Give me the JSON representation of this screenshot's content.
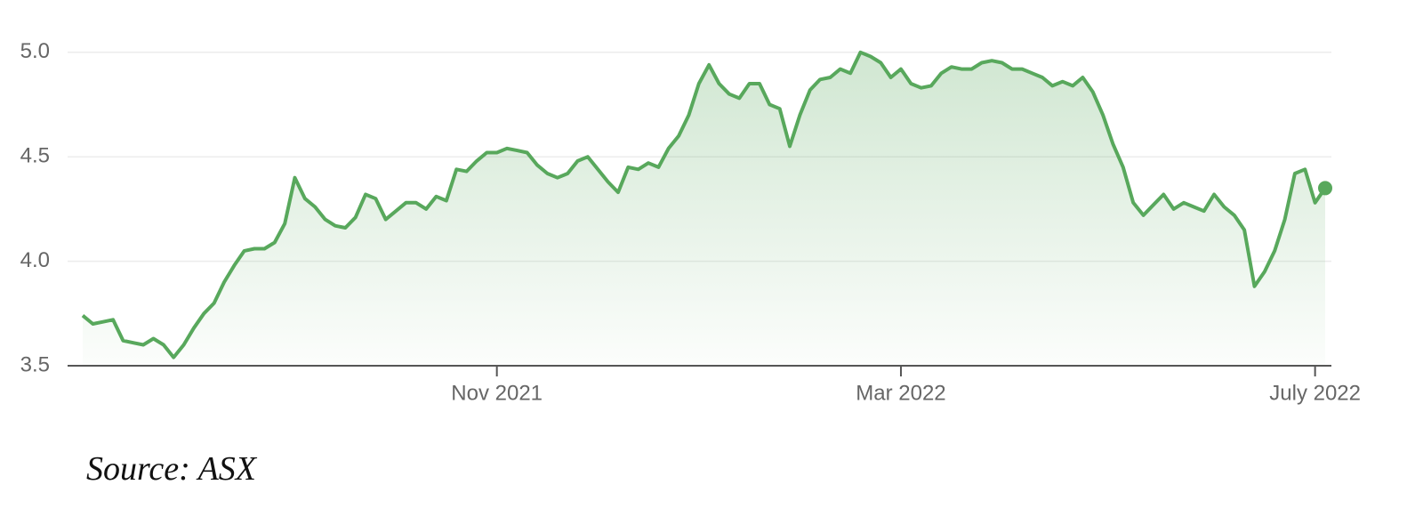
{
  "chart_data": {
    "type": "line",
    "color": "#58a85c",
    "categories": [
      null,
      null,
      null,
      null,
      null,
      null,
      null,
      null,
      null,
      null,
      null,
      null,
      null,
      null,
      null,
      null,
      null,
      null,
      null,
      null,
      null,
      null,
      null,
      null,
      null,
      null,
      null,
      null,
      null,
      null,
      null,
      null,
      null,
      null,
      null,
      null,
      null,
      null,
      null,
      null,
      null,
      "Nov 2021",
      null,
      null,
      null,
      null,
      null,
      null,
      null,
      null,
      null,
      null,
      null,
      null,
      null,
      null,
      null,
      null,
      null,
      null,
      null,
      null,
      null,
      null,
      null,
      null,
      null,
      null,
      null,
      null,
      null,
      null,
      null,
      null,
      null,
      null,
      null,
      null,
      null,
      null,
      null,
      "Mar 2022",
      null,
      null,
      null,
      null,
      null,
      null,
      null,
      null,
      null,
      null,
      null,
      null,
      null,
      null,
      null,
      null,
      null,
      null,
      null,
      null,
      null,
      null,
      null,
      null,
      null,
      null,
      null,
      null,
      null,
      null,
      null,
      null,
      null,
      null,
      null,
      null,
      null,
      null,
      null,
      null,
      "July 2022",
      null
    ],
    "values": [
      3.74,
      3.7,
      3.71,
      3.72,
      3.62,
      3.61,
      3.6,
      3.63,
      3.6,
      3.54,
      3.6,
      3.68,
      3.75,
      3.8,
      3.9,
      3.98,
      4.05,
      4.06,
      4.06,
      4.09,
      4.18,
      4.4,
      4.3,
      4.26,
      4.2,
      4.17,
      4.16,
      4.21,
      4.32,
      4.3,
      4.2,
      4.24,
      4.28,
      4.28,
      4.25,
      4.31,
      4.29,
      4.44,
      4.43,
      4.48,
      4.52,
      4.52,
      4.54,
      4.53,
      4.52,
      4.46,
      4.42,
      4.4,
      4.42,
      4.48,
      4.5,
      4.44,
      4.38,
      4.33,
      4.45,
      4.44,
      4.47,
      4.45,
      4.54,
      4.6,
      4.7,
      4.85,
      4.94,
      4.85,
      4.8,
      4.78,
      4.85,
      4.85,
      4.75,
      4.73,
      4.55,
      4.7,
      4.82,
      4.87,
      4.88,
      4.92,
      4.9,
      5.0,
      4.98,
      4.95,
      4.88,
      4.92,
      4.85,
      4.83,
      4.84,
      4.9,
      4.93,
      4.92,
      4.92,
      4.95,
      4.96,
      4.95,
      4.92,
      4.92,
      4.9,
      4.88,
      4.84,
      4.86,
      4.84,
      4.88,
      4.81,
      4.7,
      4.56,
      4.45,
      4.28,
      4.22,
      4.27,
      4.32,
      4.25,
      4.28,
      4.26,
      4.24,
      4.32,
      4.26,
      4.22,
      4.15,
      3.88,
      3.95,
      4.05,
      4.2,
      4.42,
      4.44,
      4.28,
      4.35
    ],
    "ylim": [
      3.5,
      5.08
    ],
    "yticks": [
      3.5,
      {
        "value": 4,
        "label": "4.0"
      },
      4.5,
      {
        "value": 5,
        "label": "5.0"
      }
    ],
    "grid": true
  },
  "source": "Source: ASX"
}
